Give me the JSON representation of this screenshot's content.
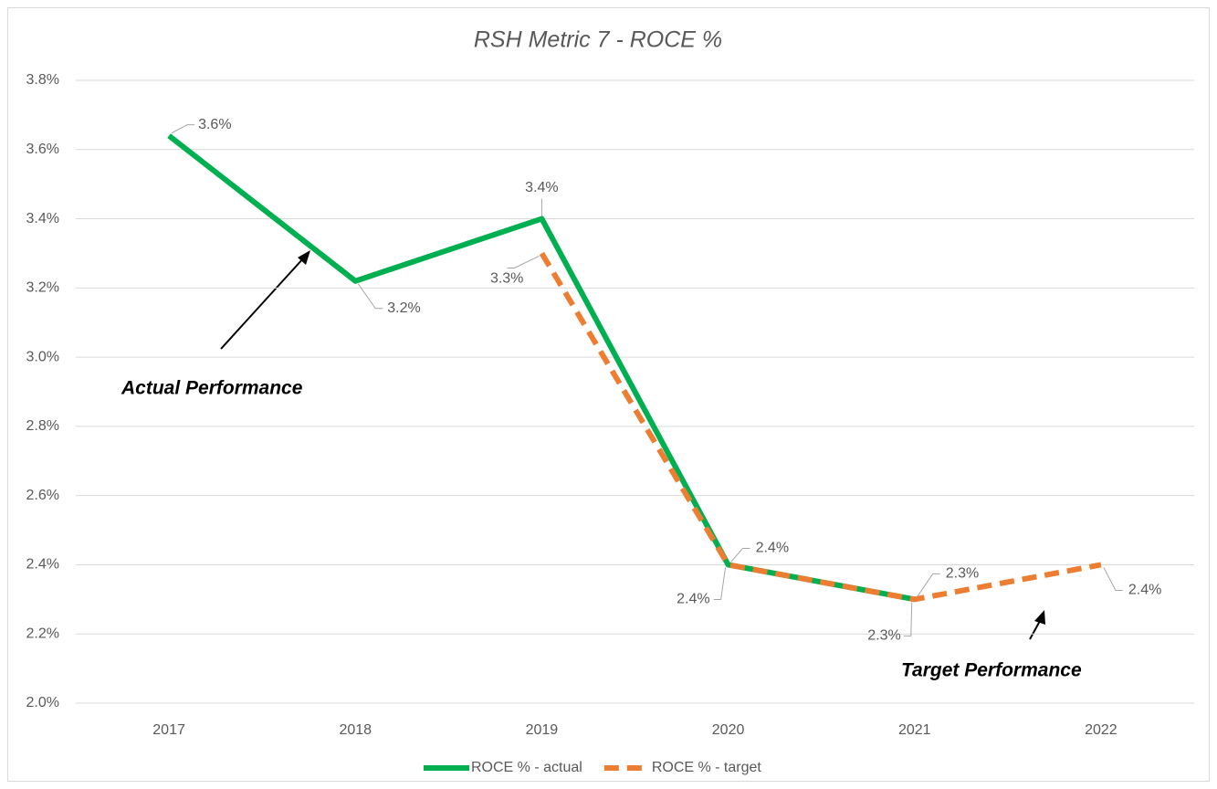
{
  "chart_data": {
    "type": "line",
    "title": "RSH Metric 7 - ROCE %",
    "categories": [
      "2017",
      "2018",
      "2019",
      "2020",
      "2021",
      "2022"
    ],
    "series": [
      {
        "name": "ROCE % - actual",
        "color": "#00b050",
        "dashed": false,
        "values": [
          3.64,
          3.22,
          3.4,
          2.4,
          2.3,
          null
        ],
        "value_labels": [
          "3.6%",
          "3.2%",
          "3.4%",
          "2.4%",
          "2.3%",
          null
        ]
      },
      {
        "name": "ROCE % - target",
        "color": "#ed7d31",
        "dashed": true,
        "values": [
          null,
          null,
          3.3,
          2.4,
          2.3,
          2.4
        ],
        "value_labels": [
          null,
          null,
          "3.3%",
          "2.4%",
          "2.3%",
          "2.4%"
        ]
      }
    ],
    "ylim": [
      2.0,
      3.8
    ],
    "yticks": [
      {
        "value": 2.0,
        "label": "2.0%"
      },
      {
        "value": 2.2,
        "label": "2.2%"
      },
      {
        "value": 2.4,
        "label": "2.4%"
      },
      {
        "value": 2.6,
        "label": "2.6%"
      },
      {
        "value": 2.8,
        "label": "2.8%"
      },
      {
        "value": 3.0,
        "label": "3.0%"
      },
      {
        "value": 3.2,
        "label": "3.2%"
      },
      {
        "value": 3.4,
        "label": "3.4%"
      },
      {
        "value": 3.6,
        "label": "3.6%"
      },
      {
        "value": 3.8,
        "label": "3.8%"
      }
    ],
    "grid": true,
    "legend": "bottom",
    "annotations": [
      "Actual Performance",
      "Target Performance"
    ]
  }
}
